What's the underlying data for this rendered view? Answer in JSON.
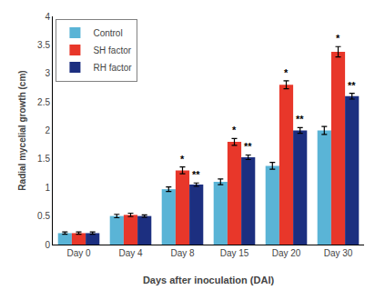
{
  "chart_data": {
    "type": "bar",
    "categories": [
      "Day 0",
      "Day 4",
      "Day 8",
      "Day 15",
      "Day 20",
      "Day 30"
    ],
    "series": [
      {
        "name": "Control",
        "color": "#5ab4d6",
        "values": [
          0.2,
          0.5,
          0.97,
          1.1,
          1.38,
          2.0
        ],
        "errors": [
          0.02,
          0.03,
          0.04,
          0.05,
          0.06,
          0.07
        ]
      },
      {
        "name": "SH factor",
        "color": "#e8372a",
        "values": [
          0.2,
          0.52,
          1.3,
          1.8,
          2.8,
          3.38
        ],
        "errors": [
          0.02,
          0.03,
          0.06,
          0.06,
          0.07,
          0.09
        ],
        "annotations": [
          null,
          null,
          "*",
          "*",
          "*",
          "*"
        ]
      },
      {
        "name": "RH factor",
        "color": "#1c2f80",
        "values": [
          0.2,
          0.5,
          1.05,
          1.53,
          2.0,
          2.6
        ],
        "errors": [
          0.02,
          0.02,
          0.03,
          0.04,
          0.05,
          0.05
        ],
        "annotations": [
          null,
          null,
          "**",
          "**",
          "**",
          "**"
        ]
      }
    ],
    "xlabel": "Days after inoculation (DAI)",
    "ylabel": "Radial mycelial growth (cm)",
    "ylim": [
      0,
      4
    ],
    "yticks": [
      0,
      0.5,
      1,
      1.5,
      2,
      2.5,
      3,
      3.5,
      4
    ],
    "grid": false,
    "legend": "upper left"
  }
}
